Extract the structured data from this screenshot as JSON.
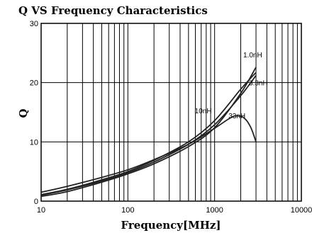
{
  "chart_data": {
    "type": "line",
    "title": "Q  VS Frequency Characteristics",
    "xlabel": "Frequency[MHz]",
    "ylabel": "Q",
    "x_scale": "log",
    "xlim": [
      10,
      10000
    ],
    "ylim": [
      0,
      30
    ],
    "x_ticks": [
      "10",
      "100",
      "1000",
      "10000"
    ],
    "y_ticks": [
      "0",
      "10",
      "20",
      "30"
    ],
    "y_tick_values": [
      0,
      10,
      20,
      30
    ],
    "grid": true,
    "series": [
      {
        "name": "1.0nH",
        "x": [
          10,
          20,
          50,
          100,
          200,
          500,
          1000,
          2000,
          3000
        ],
        "y": [
          0.8,
          1.6,
          3.2,
          4.6,
          6.3,
          9.2,
          12.4,
          18.2,
          22.6
        ]
      },
      {
        "name": "3.3nH",
        "x": [
          10,
          20,
          50,
          100,
          200,
          500,
          1000,
          2000,
          3000
        ],
        "y": [
          1.0,
          1.9,
          3.4,
          4.8,
          6.6,
          9.6,
          12.9,
          17.8,
          21.2
        ]
      },
      {
        "name": "10nH",
        "x": [
          10,
          20,
          50,
          100,
          200,
          500,
          1000,
          2000,
          3000
        ],
        "y": [
          1.1,
          2.0,
          3.6,
          5.0,
          6.9,
          10.0,
          13.6,
          18.9,
          21.7
        ]
      },
      {
        "name": "33nH",
        "x": [
          10,
          20,
          50,
          100,
          200,
          500,
          1000,
          1500,
          1800,
          2200,
          2600,
          3000
        ],
        "y": [
          1.5,
          2.5,
          4.0,
          5.3,
          7.0,
          9.6,
          12.3,
          14.0,
          14.4,
          14.0,
          12.5,
          10.0
        ]
      }
    ]
  }
}
